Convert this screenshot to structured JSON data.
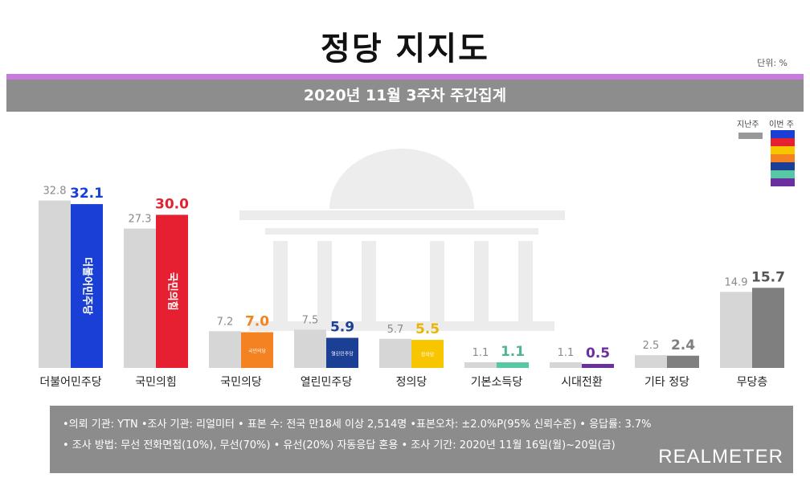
{
  "title": "정당 지지도",
  "unit": "단위: %",
  "subtitle": "2020년 11월 3주차 주간집계",
  "legend": {
    "prev": "지난주",
    "curr": "이번 주"
  },
  "colors": {
    "prev": "#d6d6d6",
    "legend_swatches": [
      "#1a3fd6",
      "#e62031",
      "#f7c600",
      "#f58220",
      "#1b3f95",
      "#58c7a6",
      "#6b2fa0"
    ]
  },
  "chart_data": {
    "type": "bar",
    "categories": [
      "더불어민주당",
      "국민의힘",
      "국민의당",
      "열린민주당",
      "정의당",
      "기본소득당",
      "시대전환",
      "기타 정당",
      "무당층"
    ],
    "series": [
      {
        "name": "지난주",
        "values": [
          32.8,
          27.3,
          7.2,
          7.5,
          5.7,
          1.1,
          1.1,
          2.5,
          14.9
        ],
        "labels": [
          "32.8",
          "27.3",
          "7.2",
          "7.5",
          "5.7",
          "1.1",
          "1.1",
          "2.5",
          "14.9"
        ]
      },
      {
        "name": "이번 주",
        "values": [
          32.1,
          30.0,
          7.0,
          5.9,
          5.5,
          1.1,
          0.5,
          2.4,
          15.7
        ],
        "labels": [
          "32.1",
          "30.0",
          "7.0",
          "5.9",
          "5.5",
          "1.1",
          "0.5",
          "2.4",
          "15.7"
        ]
      }
    ],
    "current_colors": [
      "#1a3fd6",
      "#e62031",
      "#f58220",
      "#1b3f95",
      "#f7c600",
      "#58c7a6",
      "#6b2fa0",
      "#7f7f7f",
      "#7f7f7f"
    ],
    "current_label_colors": [
      "#1a3fd6",
      "#e62031",
      "#f58220",
      "#1b3f95",
      "#e8b600",
      "#4fb693",
      "#6b2fa0",
      "#7f7f7f",
      "#555555"
    ],
    "bar_logos": [
      "더불어민주당",
      "국민의힘",
      "국민의당",
      "열린민주당",
      "정의당",
      "",
      "",
      "",
      ""
    ],
    "ylim": [
      0,
      40
    ],
    "xlabel": "",
    "ylabel": ""
  },
  "footer": {
    "line1": "•의뢰 기관: YTN •조사 기관: 리얼미터 • 표본 수: 전국 만18세 이상 2,514명 •표본오차: ±2.0%P(95% 신뢰수준) • 응답률: 3.7%",
    "line2": "• 조사 방법: 무선 전화면접(10%), 무선(70%) • 유선(20%) 자동응답 혼용 • 조사 기간: 2020년 11월 16일(월)~20일(금)",
    "logo": "REALMETER"
  }
}
